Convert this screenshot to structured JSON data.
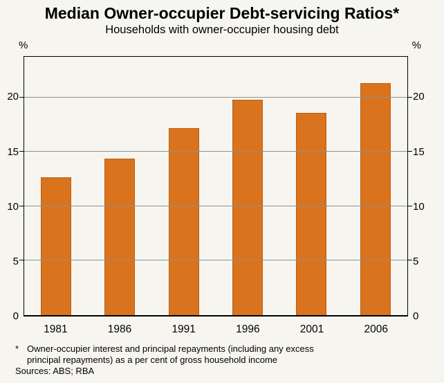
{
  "title": "Median Owner-occupier Debt-servicing Ratios*",
  "subtitle": "Households with owner-occupier housing debt",
  "footnote": {
    "marker": "*",
    "line1": "Owner-occupier interest and principal repayments (including any excess",
    "line2": "principal repayments) as a per cent of gross household income",
    "sources": "Sources: ABS; RBA"
  },
  "colors": {
    "background": "#f6f5f0",
    "bar": "#d9731e",
    "bar_border": "#bd5f10",
    "grid": "#8f8f8f",
    "axis": "#000000"
  },
  "chart_data": {
    "type": "bar",
    "title": "Median Owner-occupier Debt-servicing Ratios*",
    "subtitle": "Households with owner-occupier housing debt",
    "categories": [
      "1981",
      "1986",
      "1991",
      "1996",
      "2001",
      "2006"
    ],
    "values": [
      12.7,
      14.4,
      17.2,
      19.8,
      18.6,
      21.3
    ],
    "xlabel": "",
    "ylabel_left": "%",
    "ylabel_right": "%",
    "ylim": [
      0,
      23.75
    ],
    "yticks": [
      0,
      5,
      10,
      15,
      20
    ],
    "grid": true,
    "legend": "none",
    "bar_color": "#d9731e"
  }
}
